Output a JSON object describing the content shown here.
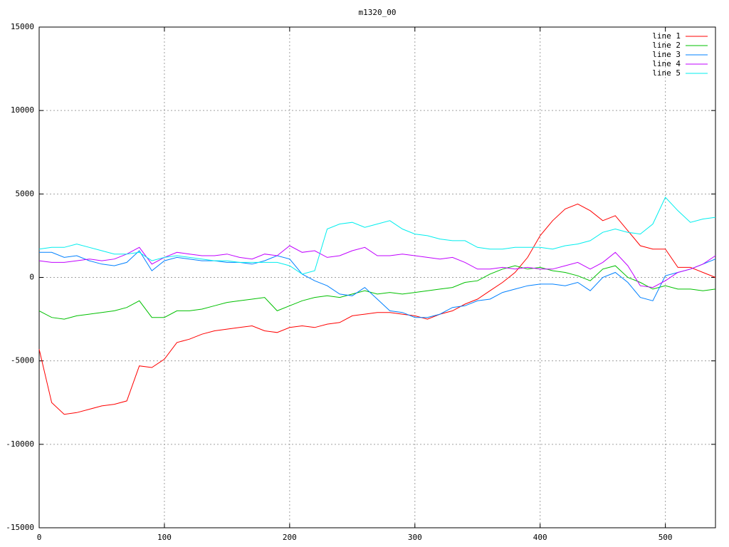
{
  "chart_data": {
    "type": "line",
    "title": "m1320_00",
    "x": [
      0,
      10,
      20,
      30,
      40,
      50,
      60,
      70,
      80,
      90,
      100,
      110,
      120,
      130,
      140,
      150,
      160,
      170,
      180,
      190,
      200,
      210,
      220,
      230,
      240,
      250,
      260,
      270,
      280,
      290,
      300,
      310,
      320,
      330,
      340,
      350,
      360,
      370,
      380,
      390,
      400,
      410,
      420,
      430,
      440,
      450,
      460,
      470,
      480,
      490,
      500,
      510,
      520,
      530,
      540
    ],
    "xlim": [
      0,
      540
    ],
    "xticks": [
      0,
      100,
      200,
      300,
      400,
      500
    ],
    "ylim": [
      -15000,
      15000
    ],
    "yticks": [
      -15000,
      -10000,
      -5000,
      0,
      5000,
      10000,
      15000
    ],
    "grid": true,
    "legend": "top-right",
    "series": [
      {
        "name": "line 1",
        "color": "#ff0000",
        "values": [
          -4300,
          -7500,
          -8200,
          -8100,
          -7900,
          -7700,
          -7600,
          -7400,
          -5300,
          -5400,
          -4900,
          -3900,
          -3700,
          -3400,
          -3200,
          -3100,
          -3000,
          -2900,
          -3200,
          -3300,
          -3000,
          -2900,
          -3000,
          -2800,
          -2700,
          -2300,
          -2200,
          -2100,
          -2100,
          -2200,
          -2300,
          -2500,
          -2200,
          -2000,
          -1600,
          -1300,
          -800,
          -300,
          300,
          1200,
          2500,
          3400,
          4100,
          4400,
          4000,
          3400,
          3700,
          2800,
          1900,
          1700,
          1700,
          600,
          600,
          300,
          0
        ]
      },
      {
        "name": "line 2",
        "color": "#00c000",
        "values": [
          -2000,
          -2400,
          -2500,
          -2300,
          -2200,
          -2100,
          -2000,
          -1800,
          -1400,
          -2400,
          -2400,
          -2000,
          -2000,
          -1900,
          -1700,
          -1500,
          -1400,
          -1300,
          -1200,
          -2000,
          -1700,
          -1400,
          -1200,
          -1100,
          -1200,
          -1000,
          -800,
          -1000,
          -900,
          -1000,
          -900,
          -800,
          -700,
          -600,
          -300,
          -200,
          200,
          500,
          700,
          500,
          600,
          400,
          300,
          100,
          -200,
          500,
          700,
          0,
          -300,
          -700,
          -500,
          -700,
          -700,
          -800,
          -700
        ]
      },
      {
        "name": "line 3",
        "color": "#0080ff",
        "values": [
          1500,
          1500,
          1200,
          1300,
          1000,
          800,
          700,
          900,
          1600,
          400,
          1000,
          1200,
          1100,
          1000,
          1000,
          900,
          900,
          800,
          1000,
          1300,
          1100,
          200,
          -200,
          -500,
          -1000,
          -1100,
          -600,
          -1300,
          -2000,
          -2100,
          -2400,
          -2400,
          -2200,
          -1800,
          -1700,
          -1400,
          -1300,
          -900,
          -700,
          -500,
          -400,
          -400,
          -500,
          -300,
          -800,
          0,
          300,
          -300,
          -1200,
          -1400,
          100,
          300,
          500,
          800,
          1100
        ]
      },
      {
        "name": "line 4",
        "color": "#c000ff",
        "values": [
          1000,
          900,
          900,
          1000,
          1100,
          1000,
          1100,
          1400,
          1800,
          800,
          1200,
          1500,
          1400,
          1300,
          1300,
          1400,
          1200,
          1100,
          1400,
          1300,
          1900,
          1500,
          1600,
          1200,
          1300,
          1600,
          1800,
          1300,
          1300,
          1400,
          1300,
          1200,
          1100,
          1200,
          900,
          500,
          500,
          600,
          500,
          600,
          500,
          500,
          700,
          900,
          500,
          900,
          1500,
          700,
          -500,
          -600,
          -200,
          300,
          500,
          800,
          1300
        ]
      },
      {
        "name": "line 5",
        "color": "#00eeee",
        "values": [
          1700,
          1800,
          1800,
          2000,
          1800,
          1600,
          1400,
          1400,
          1500,
          1000,
          1200,
          1300,
          1200,
          1100,
          1000,
          1000,
          900,
          900,
          900,
          900,
          700,
          200,
          400,
          2900,
          3200,
          3300,
          3000,
          3200,
          3400,
          2900,
          2600,
          2500,
          2300,
          2200,
          2200,
          1800,
          1700,
          1700,
          1800,
          1800,
          1800,
          1700,
          1900,
          2000,
          2200,
          2700,
          2900,
          2700,
          2600,
          3200,
          4800,
          4000,
          3300,
          3500,
          3600
        ]
      }
    ]
  }
}
